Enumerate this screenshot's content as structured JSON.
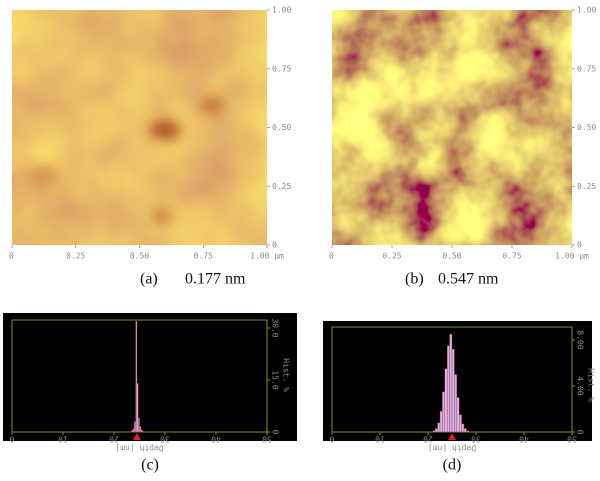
{
  "panels": [
    {
      "label": "(a)",
      "roughness": "0.177 nm",
      "xticks": [
        "0",
        "0.25",
        "0.50",
        "0.75",
        "1.00 µm"
      ],
      "yticks": [
        "0",
        "0.25",
        "0.50",
        "0.75",
        "1.00"
      ]
    },
    {
      "label": "(b)",
      "roughness": "0.547 nm",
      "xticks": [
        "0",
        "0.25",
        "0.50",
        "0.75",
        "1.00 µm"
      ],
      "yticks": [
        "0",
        "0.25",
        "0.50",
        "0.75",
        "1.00"
      ]
    }
  ],
  "histograms": [
    {
      "type": "histogram",
      "label": "(c)",
      "xlabel": "Depth [nm]",
      "ylabel": "Hist. %",
      "xlim": [
        0,
        50
      ],
      "xticks": [
        0,
        10,
        20,
        30,
        40,
        50
      ],
      "ylim": [
        0,
        32.3
      ],
      "yticks": [
        0,
        {
          "value": 15,
          "label": "15.0"
        },
        {
          "value": 30,
          "label": "30.0"
        }
      ],
      "bins": [
        22,
        22.25,
        22.5,
        22.75,
        23,
        23.25,
        23.5,
        23.75,
        24,
        24.25,
        24.5,
        24.75,
        25,
        25.25,
        25.5,
        25.75,
        26,
        26.25,
        26.5,
        26.75,
        27
      ],
      "counts": [
        0,
        0,
        0,
        0,
        0.1,
        0.2,
        0.5,
        1,
        3,
        32,
        14,
        4,
        1.5,
        0.6,
        0.3,
        0.1,
        0,
        0,
        0,
        0
      ],
      "marker": 24.5,
      "color": "#c9b6e8",
      "edge_color": "#c83040",
      "axis_color": "#8c8c1e"
    },
    {
      "type": "histogram",
      "label": "(d)",
      "xlabel": "Depth [nm]",
      "ylabel": "Hist. %",
      "xlim": [
        0,
        50
      ],
      "xticks": [
        0,
        10,
        20,
        30,
        40,
        50
      ],
      "ylim": [
        0,
        9.13
      ],
      "yticks": [
        0,
        {
          "value": 4,
          "label": "4.00"
        },
        {
          "value": 8,
          "label": "8.00"
        }
      ],
      "bins": [
        20,
        20.5,
        21,
        21.5,
        22,
        22.5,
        23,
        23.5,
        24,
        24.5,
        25,
        25.5,
        26,
        26.5,
        27,
        27.5,
        28,
        28.5,
        29,
        29.5,
        30
      ],
      "counts": [
        0,
        0,
        0.1,
        0.3,
        0.8,
        1.8,
        3.5,
        5.5,
        7.5,
        8.5,
        7.2,
        5,
        3,
        1.5,
        0.7,
        0.3,
        0.1,
        0,
        0,
        0
      ],
      "marker": 25,
      "color": "#c9b6e8",
      "edge_color": "#c83040",
      "axis_color": "#8c8c1e"
    }
  ]
}
